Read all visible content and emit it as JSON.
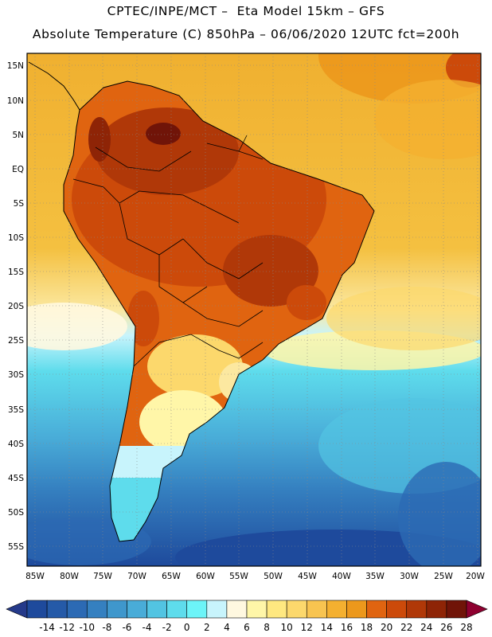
{
  "header": {
    "line1": "CPTEC/INPE/MCT –  Eta Model 15km – GFS",
    "line2": "Absolute Temperature (C) 850hPa – 06/06/2020 12UTC fct=200h"
  },
  "map": {
    "region": "South America",
    "lat_labels": [
      "15N",
      "10N",
      "5N",
      "EQ",
      "5S",
      "10S",
      "15S",
      "20S",
      "25S",
      "30S",
      "35S",
      "40S",
      "45S",
      "50S",
      "55S"
    ],
    "lon_labels": [
      "85W",
      "80W",
      "75W",
      "70W",
      "65W",
      "60W",
      "55W",
      "50W",
      "45W",
      "40W",
      "35W",
      "30W",
      "25W",
      "20W"
    ]
  },
  "colorbar": {
    "colors": [
      "#1e4a9c",
      "#255aa8",
      "#2c6ab4",
      "#3580c0",
      "#3f97cc",
      "#49acd8",
      "#52c4e2",
      "#5edcec",
      "#6cf4f8",
      "#c8f4fc",
      "#fff8e0",
      "#fff6a8",
      "#ffe880",
      "#fcd86c",
      "#f8c450",
      "#f4b030",
      "#ec981c",
      "#e06410",
      "#cc4a0a",
      "#b03808",
      "#8e2406",
      "#701408"
    ],
    "labels": [
      "-14",
      "-12",
      "-10",
      "-8",
      "-6",
      "-4",
      "-2",
      "0",
      "2",
      "4",
      "6",
      "8",
      "10",
      "12",
      "14",
      "16",
      "18",
      "20",
      "22",
      "24",
      "26",
      "28"
    ],
    "under_color": "#253a8a",
    "over_color": "#8e0030"
  }
}
